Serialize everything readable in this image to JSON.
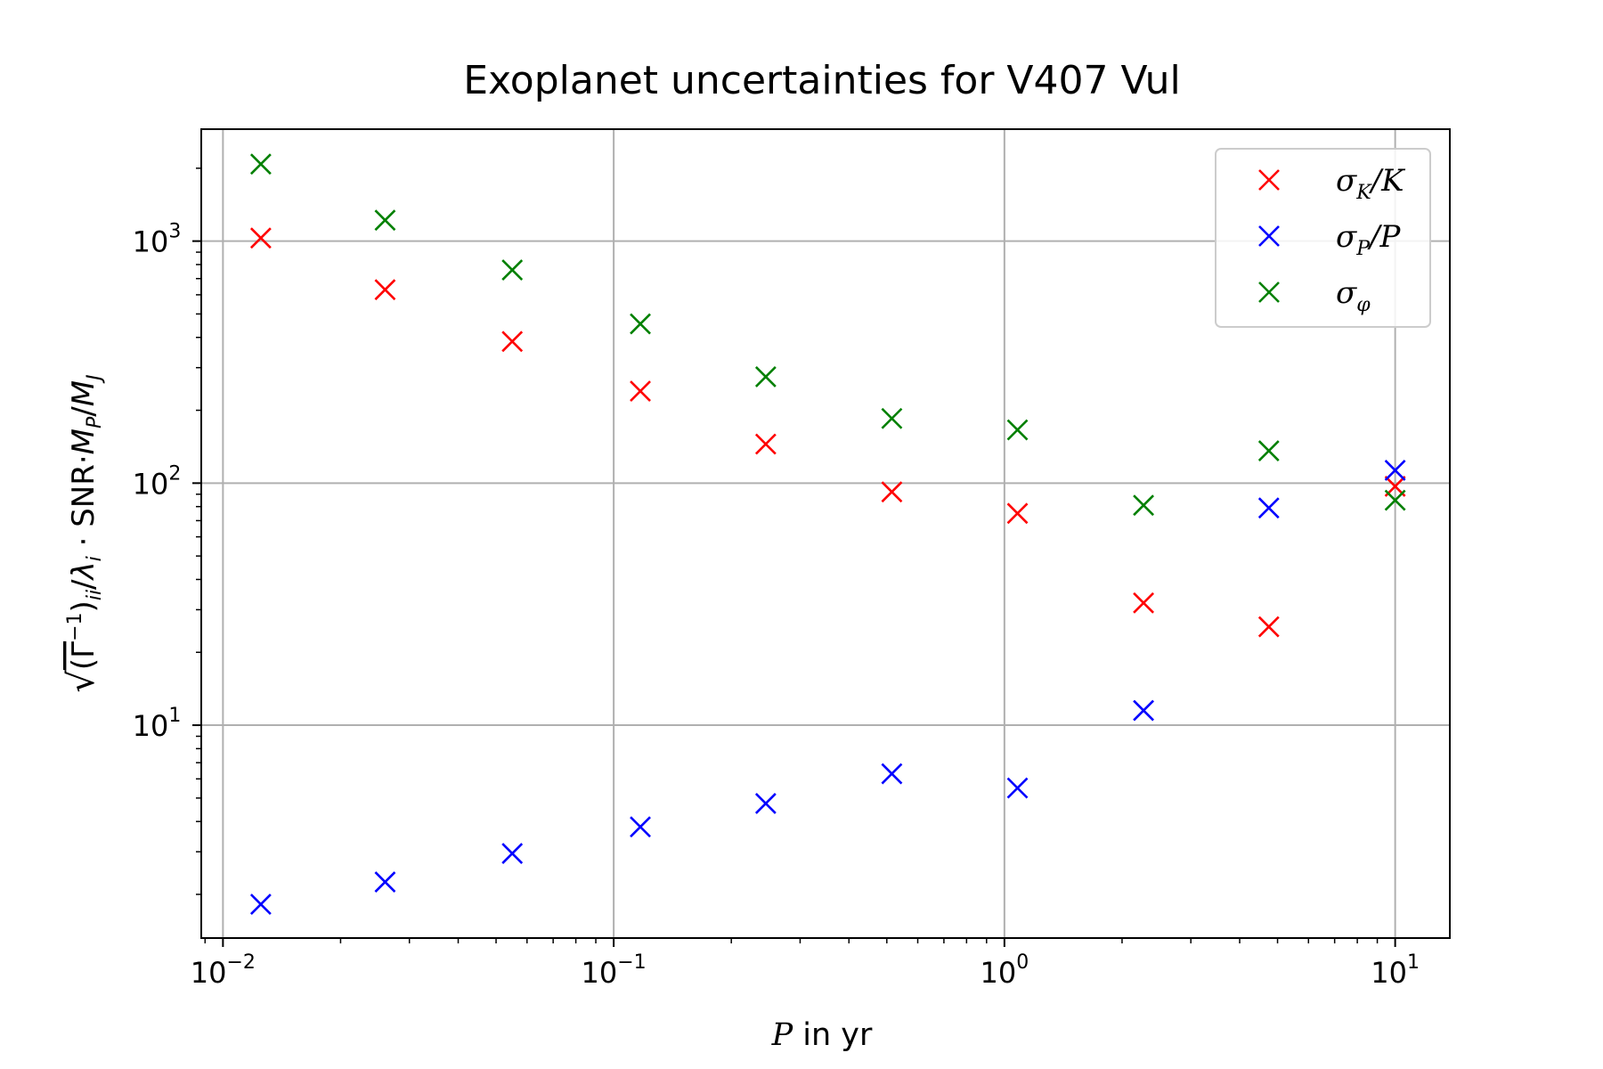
{
  "chart_data": {
    "type": "scatter",
    "title": "Exoplanet uncertainties for V407 Vul",
    "xlabel": "P in yr",
    "ylabel": "√(Γ⁻¹)ii/λi · SNR·MP/MJ",
    "xscale": "log",
    "yscale": "log",
    "xlim": [
      0.0088,
      13.8
    ],
    "ylim": [
      1.32,
      2900
    ],
    "grid": true,
    "legend_position": "top-right",
    "x_ticks": [
      {
        "value": 0.01,
        "base": "10",
        "exp": "−2"
      },
      {
        "value": 0.1,
        "base": "10",
        "exp": "−1"
      },
      {
        "value": 1,
        "base": "10",
        "exp": "0"
      },
      {
        "value": 10,
        "base": "10",
        "exp": "1"
      }
    ],
    "y_ticks": [
      {
        "value": 10,
        "base": "10",
        "exp": "1"
      },
      {
        "value": 100,
        "base": "10",
        "exp": "2"
      },
      {
        "value": 1000,
        "base": "10",
        "exp": "3"
      }
    ],
    "x": [
      0.0125,
      0.026,
      0.055,
      0.117,
      0.245,
      0.515,
      1.08,
      2.27,
      4.75,
      10.0
    ],
    "series": [
      {
        "name": "σK/K",
        "color": "#ff0000",
        "values": [
          1030,
          630,
          385,
          240,
          145,
          92,
          75,
          32,
          25.5,
          97
        ]
      },
      {
        "name": "σP/P",
        "color": "#0000ff",
        "values": [
          1.82,
          2.25,
          2.95,
          3.8,
          4.75,
          6.3,
          5.5,
          11.5,
          79,
          113
        ]
      },
      {
        "name": "σφ",
        "color": "#008000",
        "values": [
          2080,
          1220,
          760,
          455,
          275,
          185,
          166,
          81,
          136,
          85
        ]
      }
    ]
  }
}
